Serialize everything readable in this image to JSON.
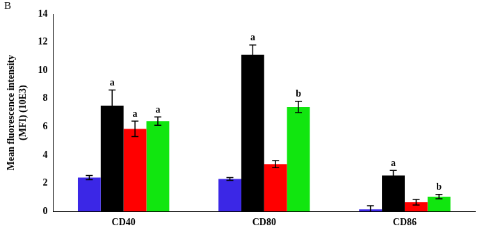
{
  "chart_data": {
    "type": "bar",
    "panel": "B",
    "y_label": [
      "Mean fluorescence intensity",
      "(MFI) (10E3)"
    ],
    "categories": [
      "CD40",
      "CD80",
      "CD86"
    ],
    "series": [
      {
        "color": "#3b27e6",
        "values": [
          2.4,
          2.3,
          0.15
        ],
        "error": [
          0.15,
          0.1,
          0.25
        ],
        "annotations": [
          null,
          null,
          null
        ]
      },
      {
        "color": "#000000",
        "values": [
          7.5,
          11.1,
          2.55
        ],
        "error": [
          1.1,
          0.7,
          0.35
        ],
        "annotations": [
          "a",
          "a",
          "a"
        ]
      },
      {
        "color": "#ff0000",
        "values": [
          5.85,
          3.35,
          0.65
        ],
        "error": [
          0.55,
          0.25,
          0.2
        ],
        "annotations": [
          "a",
          null,
          null
        ]
      },
      {
        "color": "#11e60f",
        "values": [
          6.4,
          7.4,
          1.05
        ],
        "error": [
          0.3,
          0.4,
          0.15
        ],
        "annotations": [
          "a",
          "b",
          "b"
        ]
      }
    ],
    "ylim": [
      0,
      14
    ],
    "yticks": [
      0,
      2,
      4,
      6,
      8,
      10,
      12,
      14
    ],
    "grid": false
  }
}
